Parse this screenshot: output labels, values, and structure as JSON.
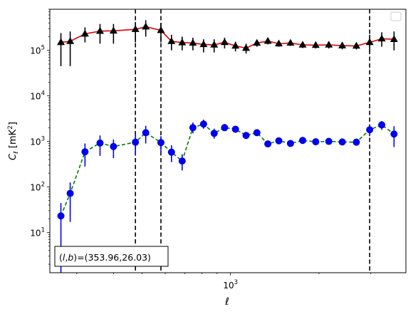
{
  "chart_data": {
    "type": "scatter",
    "title": "",
    "xlabel": "ℓ",
    "ylabel_main": "C",
    "ylabel_sub": "ℓ",
    "ylabel_unit_open": "[mK",
    "ylabel_unit_sup": "2",
    "ylabel_unit_close": "]",
    "x_scale": "log",
    "y_scale": "log",
    "xlim": [
      243,
      3950
    ],
    "ylim": [
      1.3,
      800000
    ],
    "x_major_ticks": [
      {
        "value": 1000,
        "base": "10",
        "exp": "3"
      }
    ],
    "y_major_ticks": [
      {
        "value": 10,
        "base": "10",
        "exp": "1"
      },
      {
        "value": 100,
        "base": "10",
        "exp": "2"
      },
      {
        "value": 1000,
        "base": "10",
        "exp": "3"
      },
      {
        "value": 10000,
        "base": "10",
        "exp": "4"
      },
      {
        "value": 100000,
        "base": "10",
        "exp": "5"
      }
    ],
    "vlines": [
      475,
      580,
      2975
    ],
    "vline_color": "#000000",
    "legend": {
      "location": "upper-right",
      "entries": []
    },
    "annotation": {
      "prefix": "(",
      "l": "l",
      "comma": ",",
      "b": "b",
      "suffix": ")=(353.96,26.03)",
      "location": "lower-left"
    },
    "series": [
      {
        "marker": "triangle",
        "color": "#000000",
        "line_color": "#e00000",
        "line_style": "solid",
        "points": [
          {
            "x": 265,
            "y": 150000,
            "lo": 45000,
            "hi": 240000
          },
          {
            "x": 285,
            "y": 158000,
            "lo": 45000,
            "hi": 260000
          },
          {
            "x": 320,
            "y": 230000,
            "lo": 150000,
            "hi": 320000
          },
          {
            "x": 360,
            "y": 265000,
            "lo": 140000,
            "hi": 380000
          },
          {
            "x": 400,
            "y": 268000,
            "lo": 140000,
            "hi": 380000
          },
          {
            "x": 475,
            "y": 290000,
            "lo": 150000,
            "hi": 420000
          },
          {
            "x": 515,
            "y": 330000,
            "lo": 200000,
            "hi": 460000
          },
          {
            "x": 580,
            "y": 275000,
            "lo": 150000,
            "hi": 400000
          },
          {
            "x": 630,
            "y": 158000,
            "lo": 100000,
            "hi": 220000
          },
          {
            "x": 685,
            "y": 148000,
            "lo": 100000,
            "hi": 200000
          },
          {
            "x": 745,
            "y": 145000,
            "lo": 100000,
            "hi": 190000
          },
          {
            "x": 810,
            "y": 135000,
            "lo": 90000,
            "hi": 175000
          },
          {
            "x": 880,
            "y": 132000,
            "lo": 90000,
            "hi": 175000
          },
          {
            "x": 955,
            "y": 150000,
            "lo": 110000,
            "hi": 190000
          },
          {
            "x": 1040,
            "y": 125000,
            "lo": 95000,
            "hi": 155000
          },
          {
            "x": 1130,
            "y": 112000,
            "lo": 85000,
            "hi": 140000
          },
          {
            "x": 1230,
            "y": 145000,
            "lo": 120000,
            "hi": 170000
          },
          {
            "x": 1340,
            "y": 160000,
            "lo": 135000,
            "hi": 185000
          },
          {
            "x": 1460,
            "y": 140000,
            "lo": 120000,
            "hi": 162000
          },
          {
            "x": 1600,
            "y": 145000,
            "lo": 125000,
            "hi": 166000
          },
          {
            "x": 1760,
            "y": 132000,
            "lo": 112000,
            "hi": 152000
          },
          {
            "x": 1950,
            "y": 130000,
            "lo": 110000,
            "hi": 150000
          },
          {
            "x": 2160,
            "y": 132000,
            "lo": 110000,
            "hi": 155000
          },
          {
            "x": 2400,
            "y": 127000,
            "lo": 105000,
            "hi": 150000
          },
          {
            "x": 2680,
            "y": 125000,
            "lo": 105000,
            "hi": 148000
          },
          {
            "x": 2975,
            "y": 150000,
            "lo": 90000,
            "hi": 220000
          },
          {
            "x": 3270,
            "y": 180000,
            "lo": 120000,
            "hi": 250000
          },
          {
            "x": 3600,
            "y": 175000,
            "lo": 100000,
            "hi": 260000
          }
        ]
      },
      {
        "marker": "circle",
        "color": "#0000ee",
        "line_color": "#007f00",
        "line_style": "dashed",
        "points": [
          {
            "x": 265,
            "y": 23,
            "lo": 1.3,
            "hi": 44
          },
          {
            "x": 285,
            "y": 72,
            "lo": 17,
            "hi": 125
          },
          {
            "x": 320,
            "y": 590,
            "lo": 280,
            "hi": 900
          },
          {
            "x": 360,
            "y": 920,
            "lo": 480,
            "hi": 1350
          },
          {
            "x": 400,
            "y": 770,
            "lo": 430,
            "hi": 1100
          },
          {
            "x": 475,
            "y": 960,
            "lo": 500,
            "hi": 1400
          },
          {
            "x": 515,
            "y": 1550,
            "lo": 900,
            "hi": 2200
          },
          {
            "x": 580,
            "y": 940,
            "lo": 580,
            "hi": 1300
          },
          {
            "x": 630,
            "y": 580,
            "lo": 350,
            "hi": 820
          },
          {
            "x": 685,
            "y": 370,
            "lo": 230,
            "hi": 520
          },
          {
            "x": 745,
            "y": 2000,
            "lo": 1500,
            "hi": 2600
          },
          {
            "x": 810,
            "y": 2400,
            "lo": 1900,
            "hi": 3000
          },
          {
            "x": 880,
            "y": 1500,
            "lo": 1150,
            "hi": 1900
          },
          {
            "x": 955,
            "y": 2000,
            "lo": 1700,
            "hi": 2400
          },
          {
            "x": 1040,
            "y": 1850,
            "lo": 1550,
            "hi": 2150
          },
          {
            "x": 1130,
            "y": 1350,
            "lo": 1150,
            "hi": 1550
          },
          {
            "x": 1230,
            "y": 1550,
            "lo": 1350,
            "hi": 1750
          },
          {
            "x": 1340,
            "y": 880,
            "lo": 760,
            "hi": 1000
          },
          {
            "x": 1460,
            "y": 1030,
            "lo": 900,
            "hi": 1160
          },
          {
            "x": 1600,
            "y": 900,
            "lo": 790,
            "hi": 1010
          },
          {
            "x": 1760,
            "y": 1050,
            "lo": 930,
            "hi": 1170
          },
          {
            "x": 1950,
            "y": 980,
            "lo": 870,
            "hi": 1090
          },
          {
            "x": 2160,
            "y": 1000,
            "lo": 890,
            "hi": 1110
          },
          {
            "x": 2400,
            "y": 970,
            "lo": 860,
            "hi": 1080
          },
          {
            "x": 2680,
            "y": 960,
            "lo": 850,
            "hi": 1070
          },
          {
            "x": 2975,
            "y": 1800,
            "lo": 1300,
            "hi": 2300
          },
          {
            "x": 3270,
            "y": 2300,
            "lo": 1800,
            "hi": 2800
          },
          {
            "x": 3600,
            "y": 1450,
            "lo": 750,
            "hi": 2150
          }
        ]
      }
    ]
  }
}
